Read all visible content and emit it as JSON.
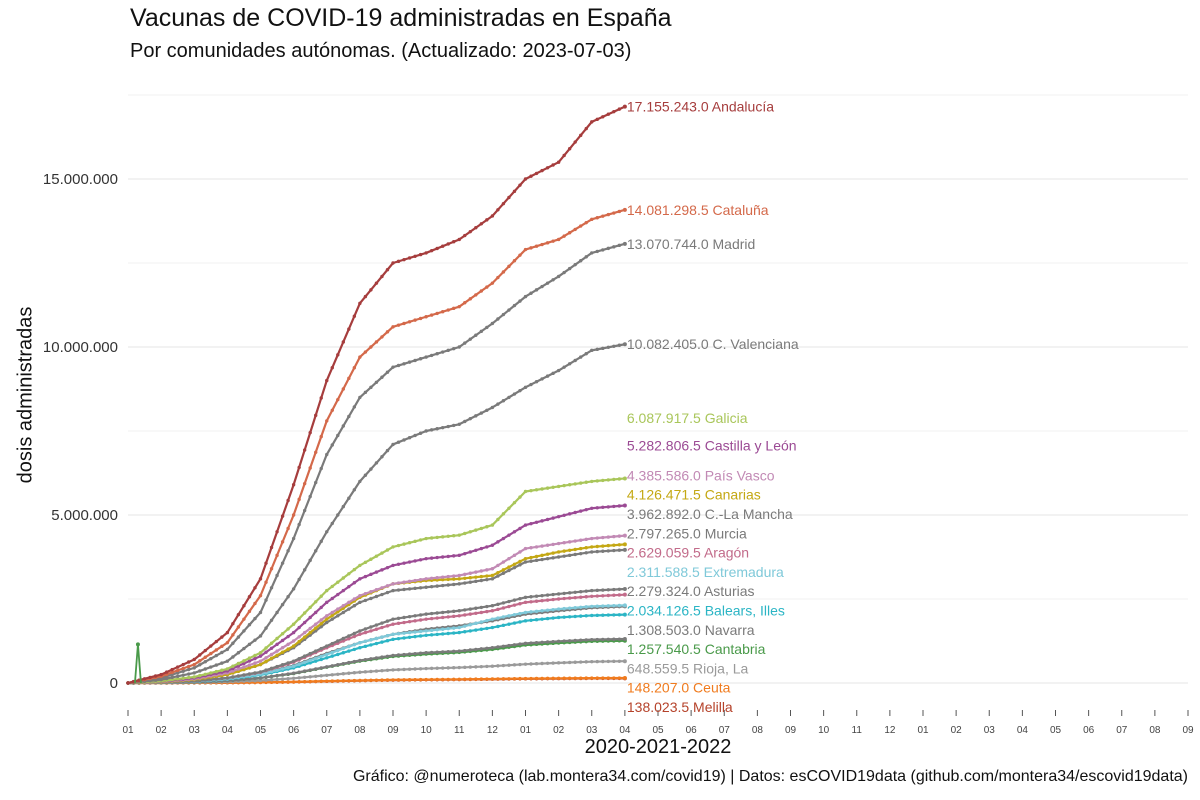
{
  "title": "Vacunas de COVID-19 administradas en España",
  "subtitle": "Por comunidades autónomas. (Actualizado: 2023-07-03)",
  "caption": "Gráfico: @numeroteca (lab.montera34.com/covid19) | Datos: esCOVID19data (github.com/montera34/escovid19data)",
  "chart_data": {
    "type": "line",
    "title": "Vacunas de COVID-19 administradas en España",
    "subtitle": "Por comunidades autónomas. (Actualizado: 2023-07-03)",
    "xlabel": "2020-2021-2022",
    "ylabel": "dosis administradas",
    "ylim": [
      -500000,
      17700000
    ],
    "yticks": [
      0,
      5000000,
      10000000,
      15000000
    ],
    "ytick_labels": [
      "0",
      "5.000.000",
      "10.000.000",
      "15.000.000"
    ],
    "x_months": [
      "01",
      "02",
      "03",
      "04",
      "05",
      "06",
      "07",
      "08",
      "09",
      "10",
      "11",
      "12",
      "01",
      "02",
      "03",
      "04",
      "05",
      "06",
      "07",
      "08",
      "09",
      "10",
      "11",
      "12",
      "01",
      "02",
      "03",
      "04",
      "05",
      "06",
      "07",
      "08",
      "09"
    ],
    "x_range_months": [
      0,
      32
    ],
    "grid": true,
    "legend": "none (labels at line ends)",
    "series_x_months": [
      0,
      1,
      2,
      3,
      4,
      5,
      6,
      7,
      8,
      9,
      10,
      11,
      12,
      13,
      14,
      15
    ],
    "series": [
      {
        "name": "Andalucía",
        "label": "17.155.243.0 Andalucía",
        "color": "#a63d3d",
        "values": [
          0,
          250000,
          700000,
          1500000,
          3100000,
          5900000,
          9000000,
          11300000,
          12500000,
          12800000,
          13200000,
          13900000,
          15000000,
          15500000,
          16700000,
          17155243
        ]
      },
      {
        "name": "Cataluña",
        "label": "14.081.298.5 Cataluña",
        "color": "#d4694a",
        "values": [
          0,
          200000,
          550000,
          1200000,
          2600000,
          5000000,
          7800000,
          9700000,
          10600000,
          10900000,
          11200000,
          11900000,
          12900000,
          13200000,
          13800000,
          14081298
        ]
      },
      {
        "name": "Madrid",
        "label": "13.070.744.0 Madrid",
        "color": "#7a7a7a",
        "values": [
          0,
          150000,
          450000,
          1000000,
          2100000,
          4300000,
          6800000,
          8500000,
          9400000,
          9700000,
          10000000,
          10700000,
          11500000,
          12100000,
          12800000,
          13070744
        ]
      },
      {
        "name": "C. Valenciana",
        "label": "10.082.405.0 C. Valenciana",
        "color": "#7a7a7a",
        "values": [
          0,
          100000,
          300000,
          650000,
          1400000,
          2800000,
          4500000,
          6000000,
          7100000,
          7500000,
          7700000,
          8200000,
          8800000,
          9300000,
          9900000,
          10082405
        ]
      },
      {
        "name": "Galicia",
        "label": "6.087.917.5 Galicia",
        "color": "#a9c65a",
        "values": [
          0,
          60000,
          180000,
          420000,
          900000,
          1750000,
          2750000,
          3500000,
          4050000,
          4300000,
          4400000,
          4700000,
          5700000,
          5850000,
          6000000,
          6087917
        ]
      },
      {
        "name": "Castilla y León",
        "label": "5.282.806.5 Castilla y León",
        "color": "#9b4a94",
        "values": [
          0,
          50000,
          150000,
          360000,
          800000,
          1500000,
          2400000,
          3100000,
          3500000,
          3700000,
          3800000,
          4100000,
          4700000,
          4950000,
          5200000,
          5282806
        ]
      },
      {
        "name": "País Vasco",
        "label": "4.385.586.0 País Vasco",
        "color": "#c28ab5",
        "values": [
          0,
          40000,
          120000,
          300000,
          650000,
          1250000,
          2000000,
          2600000,
          2950000,
          3100000,
          3200000,
          3400000,
          4000000,
          4150000,
          4300000,
          4385586
        ]
      },
      {
        "name": "Canarias",
        "label": "4.126.471.5 Canarias",
        "color": "#c4a814",
        "values": [
          0,
          30000,
          100000,
          250000,
          550000,
          1100000,
          1900000,
          2550000,
          2950000,
          3050000,
          3100000,
          3200000,
          3700000,
          3900000,
          4050000,
          4126471
        ]
      },
      {
        "name": "C.-La Mancha",
        "label": "3.962.892.0 C.-La Mancha",
        "color": "#7a7a7a",
        "values": [
          0,
          30000,
          100000,
          250000,
          550000,
          1050000,
          1800000,
          2400000,
          2750000,
          2850000,
          2950000,
          3100000,
          3600000,
          3750000,
          3900000,
          3962892
        ]
      },
      {
        "name": "Murcia",
        "label": "2.797.265.0 Murcia",
        "color": "#7a7a7a",
        "values": [
          0,
          20000,
          60000,
          150000,
          330000,
          650000,
          1100000,
          1550000,
          1900000,
          2050000,
          2150000,
          2300000,
          2550000,
          2650000,
          2750000,
          2797265
        ]
      },
      {
        "name": "Aragón",
        "label": "2.629.059.5 Aragón",
        "color": "#c26b8a",
        "values": [
          0,
          20000,
          60000,
          150000,
          320000,
          620000,
          1050000,
          1450000,
          1750000,
          1900000,
          2000000,
          2150000,
          2400000,
          2500000,
          2580000,
          2629059
        ]
      },
      {
        "name": "Extremadura",
        "label": "2.311.588.5 Extremadura",
        "color": "#7fc9d9",
        "values": [
          0,
          15000,
          50000,
          120000,
          260000,
          500000,
          850000,
          1200000,
          1450000,
          1550000,
          1650000,
          1900000,
          2100000,
          2200000,
          2280000,
          2311588
        ]
      },
      {
        "name": "Asturias",
        "label": "2.279.324.0 Asturias",
        "color": "#7a7a7a",
        "values": [
          0,
          15000,
          50000,
          120000,
          270000,
          520000,
          880000,
          1200000,
          1450000,
          1600000,
          1700000,
          1850000,
          2050000,
          2150000,
          2240000,
          2279324
        ]
      },
      {
        "name": "Balears, Illes",
        "label": "2.034.126.5 Balears, Illes",
        "color": "#2bb5c5",
        "values": [
          0,
          15000,
          45000,
          110000,
          240000,
          450000,
          750000,
          1050000,
          1300000,
          1420000,
          1500000,
          1650000,
          1850000,
          1950000,
          2010000,
          2034126
        ]
      },
      {
        "name": "Navarra",
        "label": "1.308.503.0 Navarra",
        "color": "#7a7a7a",
        "values": [
          0,
          10000,
          30000,
          70000,
          150000,
          290000,
          480000,
          670000,
          820000,
          900000,
          950000,
          1050000,
          1180000,
          1240000,
          1290000,
          1308503
        ]
      },
      {
        "name": "Cantabria",
        "label": "1.257.540.5 Cantabria",
        "color": "#4a9a4a",
        "values": [
          0,
          10000,
          30000,
          70000,
          150000,
          280000,
          470000,
          650000,
          790000,
          860000,
          910000,
          1000000,
          1130000,
          1190000,
          1240000,
          1257540
        ]
      },
      {
        "name": "Rioja, La",
        "label": "648.559.5 Rioja, La",
        "color": "#9a9a9a",
        "values": [
          0,
          5000,
          15000,
          35000,
          75000,
          140000,
          230000,
          320000,
          390000,
          430000,
          460000,
          500000,
          560000,
          600000,
          635000,
          648559
        ]
      },
      {
        "name": "Ceuta",
        "label": "148.207.0 Ceuta",
        "color": "#f07b1e",
        "values": [
          0,
          1000,
          4000,
          9000,
          18000,
          33000,
          55000,
          75000,
          92000,
          102000,
          110000,
          120000,
          132000,
          140000,
          146000,
          148207
        ]
      },
      {
        "name": "Melilla",
        "label": "138.023.5 Melilla",
        "color": "#b5422a",
        "values": [
          0,
          1000,
          3000,
          8000,
          16000,
          30000,
          50000,
          70000,
          85000,
          95000,
          102000,
          112000,
          124000,
          131000,
          136000,
          138023
        ]
      }
    ],
    "spike": {
      "series": "Cantabria",
      "x_month": 0.3,
      "value": 1150000
    }
  }
}
